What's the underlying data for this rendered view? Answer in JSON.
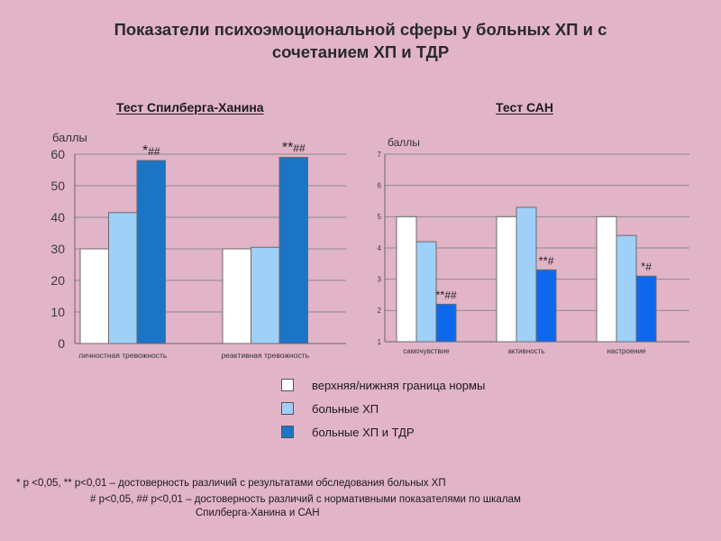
{
  "title_line1": "Показатели психоэмоциональной сферы у больных ХП и с",
  "title_line2": "сочетанием ХП и ТДР",
  "colors": {
    "norm": "#ffffff",
    "hp": "#9fd0f7",
    "hp_tdr_left": "#1c74c4",
    "hp_tdr_right": "#0e68ee"
  },
  "legend": [
    {
      "label": "верхняя/нижняя граница нормы",
      "color": "#ffffff"
    },
    {
      "label": "больные ХП",
      "color": "#9fd0f7"
    },
    {
      "label": "больные ХП и ТДР",
      "color": "#1c74c4"
    }
  ],
  "footnote1": "* р <0,05, ** р<0,01 – достоверность различий с результатами  обследования больных ХП",
  "footnote2": "# р<0,05, ## р<0,01 – достоверность  различий с нормативными показателями по шкалам",
  "footnote3": "Спилберга-Ханина и САН",
  "chart_data": [
    {
      "type": "bar",
      "title": "Тест Спилберга-Ханина",
      "ylabel": "баллы",
      "ylim": [
        0,
        60
      ],
      "yticks": [
        "0",
        "10",
        "20",
        "30",
        "40",
        "50",
        "60"
      ],
      "categories": [
        "личностная тревожность",
        "реактивная тревожность"
      ],
      "series": [
        {
          "name": "верхняя/нижняя граница нормы",
          "values": [
            30,
            30
          ]
        },
        {
          "name": "больные ХП",
          "values": [
            41.5,
            30.5
          ]
        },
        {
          "name": "больные ХП и ТДР",
          "values": [
            58,
            59
          ]
        }
      ],
      "annotations": [
        {
          "category": 0,
          "stars": "*",
          "hashes": "##"
        },
        {
          "category": 1,
          "stars": "**",
          "hashes": "##"
        }
      ],
      "grid": true
    },
    {
      "type": "bar",
      "title": "Тест САН",
      "ylabel": "баллы",
      "ylim": [
        1,
        7
      ],
      "yticks": [
        "1",
        "2",
        "3",
        "4",
        "5",
        "6",
        "7"
      ],
      "categories": [
        "самочувствие",
        "активность",
        "настроение"
      ],
      "series": [
        {
          "name": "верхняя/нижняя граница нормы",
          "values": [
            5,
            5,
            5
          ]
        },
        {
          "name": "больные ХП",
          "values": [
            4.2,
            5.3,
            4.4
          ]
        },
        {
          "name": "больные ХП и ТДР",
          "values": [
            2.2,
            3.3,
            3.1
          ]
        }
      ],
      "annotations": [
        {
          "category": 0,
          "stars": "**",
          "hashes": "##"
        },
        {
          "category": 1,
          "stars": "**",
          "hashes": "#"
        },
        {
          "category": 2,
          "stars": "*",
          "hashes": "#"
        }
      ],
      "grid": true
    }
  ]
}
